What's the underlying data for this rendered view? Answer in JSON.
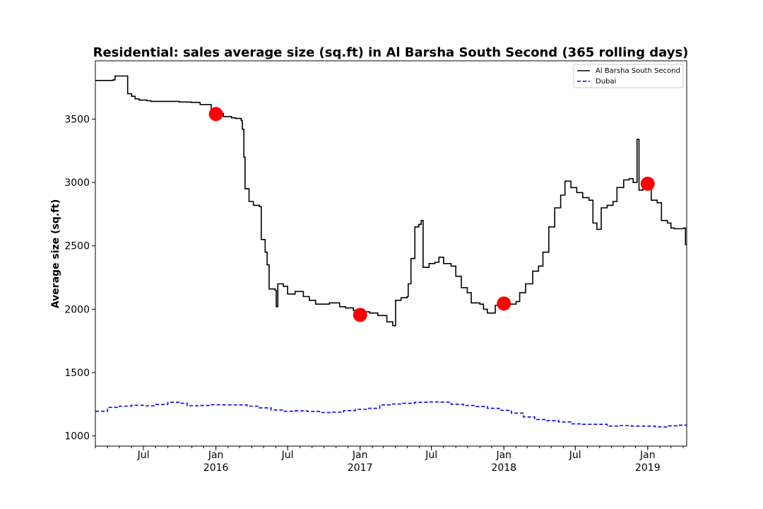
{
  "chart_data": {
    "type": "line",
    "title": "Residential: sales average size (sq.ft) in Al Barsha South Second (365 rolling days)",
    "ylabel": "Average size (sq.ft)",
    "xlabel": "",
    "xlim": [
      "2015-03-01",
      "2019-04-10"
    ],
    "ylim": [
      920,
      3960
    ],
    "grid": false,
    "legend_position": "top-right",
    "y_ticks": [
      1000,
      1500,
      2000,
      2500,
      3000,
      3500
    ],
    "x_ticks": [
      {
        "date": "2015-07-01",
        "label": "Jul",
        "year": ""
      },
      {
        "date": "2016-01-01",
        "label": "Jan",
        "year": "2016"
      },
      {
        "date": "2016-07-01",
        "label": "Jul",
        "year": ""
      },
      {
        "date": "2017-01-01",
        "label": "Jan",
        "year": "2017"
      },
      {
        "date": "2017-07-01",
        "label": "Jul",
        "year": ""
      },
      {
        "date": "2018-01-01",
        "label": "Jan",
        "year": "2018"
      },
      {
        "date": "2018-07-01",
        "label": "Jul",
        "year": ""
      },
      {
        "date": "2019-01-01",
        "label": "Jan",
        "year": "2019"
      }
    ],
    "series": [
      {
        "name": "Al Barsha South Second",
        "color": "#000000",
        "style": "solid",
        "points": [
          [
            "2015-03-01",
            3805
          ],
          [
            "2015-04-15",
            3810
          ],
          [
            "2015-04-20",
            3840
          ],
          [
            "2015-05-20",
            3840
          ],
          [
            "2015-05-22",
            3700
          ],
          [
            "2015-06-01",
            3680
          ],
          [
            "2015-06-10",
            3660
          ],
          [
            "2015-06-20",
            3650
          ],
          [
            "2015-07-10",
            3645
          ],
          [
            "2015-07-20",
            3640
          ],
          [
            "2015-08-20",
            3640
          ],
          [
            "2015-09-30",
            3635
          ],
          [
            "2015-10-30",
            3632
          ],
          [
            "2015-11-20",
            3630
          ],
          [
            "2015-11-22",
            3615
          ],
          [
            "2015-12-15",
            3615
          ],
          [
            "2015-12-20",
            3580
          ],
          [
            "2016-01-01",
            3545
          ],
          [
            "2016-01-20",
            3520
          ],
          [
            "2016-02-10",
            3510
          ],
          [
            "2016-02-20",
            3505
          ],
          [
            "2016-03-05",
            3490
          ],
          [
            "2016-03-08",
            3420
          ],
          [
            "2016-03-12",
            3200
          ],
          [
            "2016-03-15",
            2950
          ],
          [
            "2016-03-25",
            2850
          ],
          [
            "2016-04-05",
            2820
          ],
          [
            "2016-04-20",
            2810
          ],
          [
            "2016-04-25",
            2550
          ],
          [
            "2016-05-05",
            2450
          ],
          [
            "2016-05-10",
            2350
          ],
          [
            "2016-05-15",
            2160
          ],
          [
            "2016-05-30",
            2150
          ],
          [
            "2016-06-02",
            2020
          ],
          [
            "2016-06-06",
            2200
          ],
          [
            "2016-06-20",
            2180
          ],
          [
            "2016-07-01",
            2120
          ],
          [
            "2016-07-20",
            2140
          ],
          [
            "2016-08-10",
            2100
          ],
          [
            "2016-08-25",
            2070
          ],
          [
            "2016-09-10",
            2040
          ],
          [
            "2016-10-01",
            2040
          ],
          [
            "2016-10-15",
            2050
          ],
          [
            "2016-11-10",
            2020
          ],
          [
            "2016-11-25",
            2010
          ],
          [
            "2016-12-15",
            1990
          ],
          [
            "2017-01-01",
            1980
          ],
          [
            "2017-01-25",
            1970
          ],
          [
            "2017-02-15",
            1950
          ],
          [
            "2017-03-10",
            1900
          ],
          [
            "2017-03-25",
            1870
          ],
          [
            "2017-04-01",
            2070
          ],
          [
            "2017-04-15",
            2090
          ],
          [
            "2017-04-30",
            2100
          ],
          [
            "2017-05-03",
            2200
          ],
          [
            "2017-05-10",
            2400
          ],
          [
            "2017-05-20",
            2650
          ],
          [
            "2017-05-30",
            2670
          ],
          [
            "2017-06-05",
            2700
          ],
          [
            "2017-06-10",
            2330
          ],
          [
            "2017-06-25",
            2360
          ],
          [
            "2017-07-10",
            2370
          ],
          [
            "2017-07-20",
            2410
          ],
          [
            "2017-08-01",
            2360
          ],
          [
            "2017-08-20",
            2340
          ],
          [
            "2017-09-01",
            2260
          ],
          [
            "2017-09-15",
            2170
          ],
          [
            "2017-09-30",
            2130
          ],
          [
            "2017-10-10",
            2050
          ],
          [
            "2017-11-01",
            2040
          ],
          [
            "2017-11-10",
            2000
          ],
          [
            "2017-11-20",
            1970
          ],
          [
            "2017-12-10",
            2030
          ],
          [
            "2018-01-01",
            2040
          ],
          [
            "2018-01-20",
            2040
          ],
          [
            "2018-02-01",
            2060
          ],
          [
            "2018-02-10",
            2130
          ],
          [
            "2018-02-25",
            2200
          ],
          [
            "2018-03-15",
            2300
          ],
          [
            "2018-03-30",
            2340
          ],
          [
            "2018-04-10",
            2450
          ],
          [
            "2018-04-25",
            2650
          ],
          [
            "2018-05-10",
            2800
          ],
          [
            "2018-05-25",
            2900
          ],
          [
            "2018-06-05",
            3010
          ],
          [
            "2018-06-20",
            2960
          ],
          [
            "2018-07-05",
            2920
          ],
          [
            "2018-07-20",
            2880
          ],
          [
            "2018-08-05",
            2860
          ],
          [
            "2018-08-15",
            2680
          ],
          [
            "2018-08-25",
            2630
          ],
          [
            "2018-09-05",
            2800
          ],
          [
            "2018-09-20",
            2820
          ],
          [
            "2018-10-05",
            2850
          ],
          [
            "2018-10-15",
            2960
          ],
          [
            "2018-11-01",
            3020
          ],
          [
            "2018-11-15",
            3030
          ],
          [
            "2018-11-25",
            3000
          ],
          [
            "2018-12-05",
            3340
          ],
          [
            "2018-12-10",
            2940
          ],
          [
            "2018-12-20",
            3020
          ],
          [
            "2019-01-01",
            2990
          ],
          [
            "2019-01-10",
            2860
          ],
          [
            "2019-01-25",
            2840
          ],
          [
            "2019-02-05",
            2700
          ],
          [
            "2019-02-20",
            2680
          ],
          [
            "2019-03-01",
            2640
          ],
          [
            "2019-03-10",
            2635
          ],
          [
            "2019-04-02",
            2640
          ],
          [
            "2019-04-07",
            2510
          ],
          [
            "2019-04-10",
            2510
          ]
        ]
      },
      {
        "name": "Dubai",
        "color": "#0000ff",
        "style": "dashed",
        "points": [
          [
            "2015-03-01",
            1195
          ],
          [
            "2015-04-01",
            1225
          ],
          [
            "2015-05-01",
            1235
          ],
          [
            "2015-06-01",
            1242
          ],
          [
            "2015-07-01",
            1238
          ],
          [
            "2015-08-01",
            1248
          ],
          [
            "2015-09-01",
            1265
          ],
          [
            "2015-10-01",
            1258
          ],
          [
            "2015-10-20",
            1238
          ],
          [
            "2015-11-20",
            1240
          ],
          [
            "2015-12-20",
            1246
          ],
          [
            "2016-01-20",
            1245
          ],
          [
            "2016-02-20",
            1245
          ],
          [
            "2016-03-20",
            1235
          ],
          [
            "2016-04-20",
            1222
          ],
          [
            "2016-05-20",
            1205
          ],
          [
            "2016-06-20",
            1195
          ],
          [
            "2016-07-20",
            1198
          ],
          [
            "2016-08-20",
            1193
          ],
          [
            "2016-09-20",
            1185
          ],
          [
            "2016-10-20",
            1188
          ],
          [
            "2016-11-20",
            1200
          ],
          [
            "2016-12-20",
            1210
          ],
          [
            "2017-01-20",
            1218
          ],
          [
            "2017-02-20",
            1245
          ],
          [
            "2017-03-20",
            1252
          ],
          [
            "2017-04-20",
            1258
          ],
          [
            "2017-05-20",
            1265
          ],
          [
            "2017-06-20",
            1268
          ],
          [
            "2017-07-20",
            1267
          ],
          [
            "2017-08-20",
            1250
          ],
          [
            "2017-09-20",
            1240
          ],
          [
            "2017-10-20",
            1232
          ],
          [
            "2017-11-20",
            1218
          ],
          [
            "2017-12-20",
            1202
          ],
          [
            "2018-01-20",
            1180
          ],
          [
            "2018-02-20",
            1150
          ],
          [
            "2018-03-20",
            1130
          ],
          [
            "2018-04-20",
            1120
          ],
          [
            "2018-05-20",
            1110
          ],
          [
            "2018-06-20",
            1095
          ],
          [
            "2018-07-20",
            1092
          ],
          [
            "2018-08-20",
            1092
          ],
          [
            "2018-09-20",
            1078
          ],
          [
            "2018-10-20",
            1082
          ],
          [
            "2018-11-20",
            1078
          ],
          [
            "2018-12-20",
            1078
          ],
          [
            "2019-01-20",
            1072
          ],
          [
            "2019-02-20",
            1080
          ],
          [
            "2019-03-20",
            1085
          ],
          [
            "2019-04-10",
            1082
          ]
        ]
      }
    ],
    "markers": {
      "color": "#ff0000",
      "points": [
        [
          "2016-01-01",
          3540
        ],
        [
          "2017-01-01",
          1955
        ],
        [
          "2018-01-01",
          2045
        ],
        [
          "2019-01-01",
          2990
        ]
      ]
    }
  }
}
